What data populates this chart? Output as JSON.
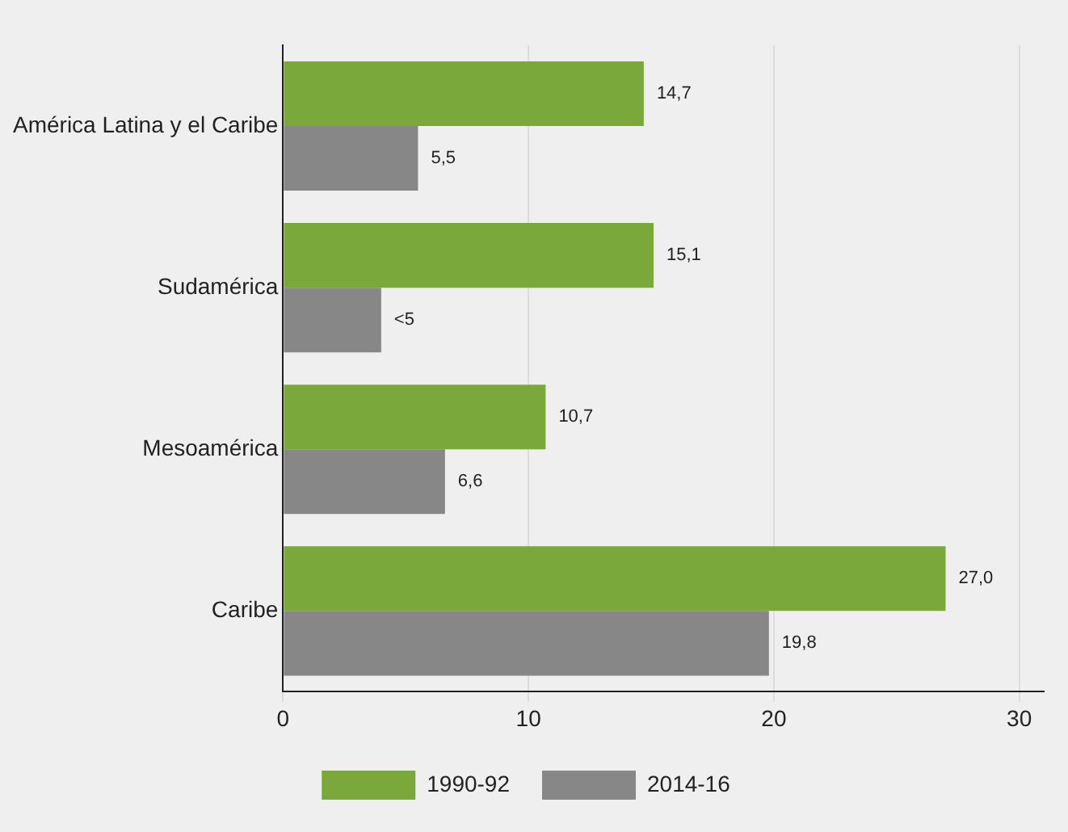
{
  "chart_data": {
    "type": "bar",
    "orientation": "horizontal",
    "categories": [
      "América Latina y el Caribe",
      "Sudamérica",
      "Mesoamérica",
      "Caribe"
    ],
    "series": [
      {
        "name": "1990-92",
        "color": "#7aa83a",
        "values": [
          14.7,
          15.1,
          10.7,
          27.0
        ],
        "value_labels": [
          "14,7",
          "15,1",
          "10,7",
          "27,0"
        ]
      },
      {
        "name": "2014-16",
        "color": "#878787",
        "values": [
          5.5,
          4.0,
          6.6,
          19.8
        ],
        "value_labels": [
          "5,5",
          "<5",
          "6,6",
          "19,8"
        ]
      }
    ],
    "xlim": [
      0,
      31
    ],
    "xticks": [
      0,
      10,
      20,
      30
    ],
    "grid": "x",
    "legend": "bottom"
  }
}
